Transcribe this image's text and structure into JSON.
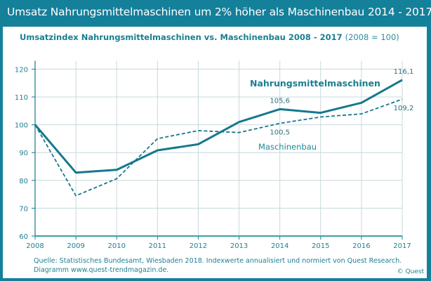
{
  "header": {
    "title": "Umsatz Nahrungsmittelmaschinen um 2% höher als Maschinenbau 2014 - 2017"
  },
  "subtitle": {
    "main": "Umsatzindex Nahrungsmittelmaschinen vs. Maschinenbau 2008  - 2017",
    "note": "(2008 = 100)"
  },
  "colors": {
    "frame": "#14809a",
    "series_line": "#16788c",
    "grid": "#c8d8dc",
    "text": "#1f7f93"
  },
  "chart_data": {
    "type": "line",
    "title": "Umsatzindex Nahrungsmittelmaschinen vs. Maschinenbau 2008 - 2017 (2008 = 100)",
    "xlabel": "",
    "ylabel": "",
    "x": [
      "2008",
      "2009",
      "2010",
      "2011",
      "2012",
      "2013",
      "2014",
      "2015",
      "2016",
      "2017"
    ],
    "y_ticks": [
      "60",
      "70",
      "80",
      "90",
      "100",
      "110",
      "120"
    ],
    "ylim": [
      60,
      123
    ],
    "grid": true,
    "series": [
      {
        "name": "Nahrungsmittelmaschinen",
        "style": "solid",
        "values": [
          100,
          82.8,
          83.8,
          90.8,
          93.0,
          101.0,
          105.6,
          104.3,
          107.9,
          116.1
        ]
      },
      {
        "name": "Maschinenbau",
        "style": "dashed",
        "values": [
          100,
          74.5,
          80.6,
          95.0,
          97.9,
          97.2,
          100.5,
          102.8,
          103.9,
          109.2
        ]
      }
    ],
    "data_labels": [
      {
        "series": 0,
        "x": "2014",
        "text": "105,6"
      },
      {
        "series": 0,
        "x": "2017",
        "text": "116,1"
      },
      {
        "series": 1,
        "x": "2014",
        "text": "100,5"
      },
      {
        "series": 1,
        "x": "2017",
        "text": "109,2"
      }
    ],
    "series_labels": [
      {
        "series": 0,
        "text": "Nahrungsmittelmaschinen"
      },
      {
        "series": 1,
        "text": "Maschinenbau"
      }
    ]
  },
  "footer": {
    "source_line1": "Quelle: Statistisches Bundesamt, Wiesbaden 2018.  Indexwerte annualisiert und normiert von Quest Research.",
    "source_line2": "Diagramm  www.quest-trendmagazin.de.",
    "copyright": "© Quest"
  }
}
